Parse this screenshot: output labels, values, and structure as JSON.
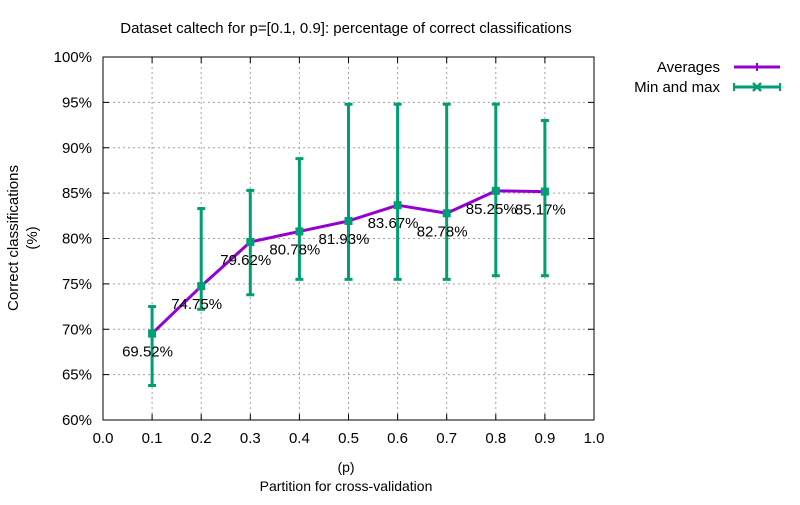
{
  "chart_data": {
    "type": "line",
    "title": "Dataset caltech for p=[0.1, 0.9]: percentage of correct classifications",
    "xlabel_line1": "(p)",
    "xlabel_line2": "Partition for cross-validation",
    "ylabel_line1": "Correct classifications",
    "ylabel_line2": "(%)",
    "xlim": [
      0.0,
      1.0
    ],
    "ylim": [
      60,
      100
    ],
    "x_ticks": [
      "0.0",
      "0.1",
      "0.2",
      "0.3",
      "0.4",
      "0.5",
      "0.6",
      "0.7",
      "0.8",
      "0.9",
      "1.0"
    ],
    "y_ticks": [
      "60%",
      "65%",
      "70%",
      "75%",
      "80%",
      "85%",
      "90%",
      "95%",
      "100%"
    ],
    "grid": true,
    "legend_placement": "outside-top-right",
    "x": [
      0.1,
      0.2,
      0.3,
      0.4,
      0.5,
      0.6,
      0.7,
      0.8,
      0.9
    ],
    "series": [
      {
        "name": "Averages",
        "color": "#9400d3",
        "values": [
          69.52,
          74.75,
          79.62,
          80.78,
          81.93,
          83.67,
          82.78,
          85.25,
          85.17
        ],
        "labels": [
          "69.52%",
          "74.75%",
          "79.62%",
          "80.78%",
          "81.93%",
          "83.67%",
          "82.78%",
          "85.25%",
          "85.17%"
        ]
      },
      {
        "name": "Min and max",
        "color": "#009e73",
        "min": [
          63.8,
          72.2,
          73.8,
          75.5,
          75.5,
          75.5,
          75.5,
          75.9,
          75.9
        ],
        "max": [
          72.5,
          83.3,
          85.3,
          88.8,
          94.8,
          94.8,
          94.8,
          94.8,
          93.0
        ]
      }
    ]
  }
}
